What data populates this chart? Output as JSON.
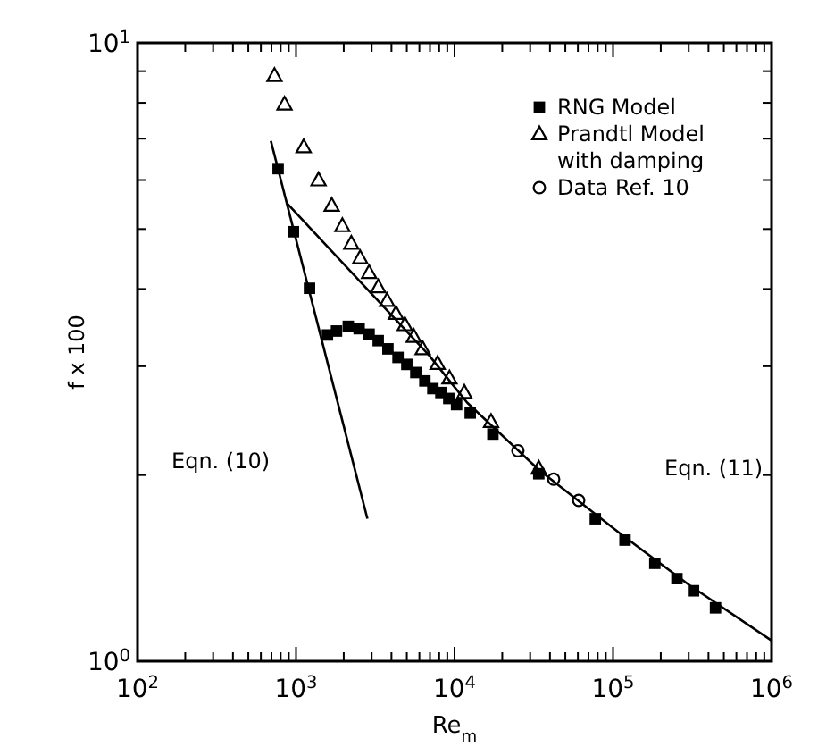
{
  "chart_data": {
    "type": "scatter",
    "xlabel": "Re$_{m}$",
    "ylabel": "f x 100",
    "log": "xy",
    "legend": "top right",
    "grid": false,
    "xlim": [
      100,
      1000000
    ],
    "ylim": [
      1,
      10
    ],
    "xticks": [
      {
        "value": 100,
        "label": "10$^{2}$"
      },
      {
        "value": 200,
        "label": null
      },
      {
        "value": 300,
        "label": null
      },
      {
        "value": 400,
        "label": null
      },
      {
        "value": 500,
        "label": null
      },
      {
        "value": 600,
        "label": null
      },
      {
        "value": 700,
        "label": null
      },
      {
        "value": 800,
        "label": null
      },
      {
        "value": 900,
        "label": null
      },
      {
        "value": 1000,
        "label": "10$^{3}$"
      },
      {
        "value": 2000,
        "label": null
      },
      {
        "value": 3000,
        "label": null
      },
      {
        "value": 4000,
        "label": null
      },
      {
        "value": 5000,
        "label": null
      },
      {
        "value": 6000,
        "label": null
      },
      {
        "value": 7000,
        "label": null
      },
      {
        "value": 8000,
        "label": null
      },
      {
        "value": 9000,
        "label": null
      },
      {
        "value": 10000,
        "label": "10$^{4}$"
      },
      {
        "value": 20000,
        "label": null
      },
      {
        "value": 30000,
        "label": null
      },
      {
        "value": 40000,
        "label": null
      },
      {
        "value": 50000,
        "label": null
      },
      {
        "value": 60000,
        "label": null
      },
      {
        "value": 70000,
        "label": null
      },
      {
        "value": 80000,
        "label": null
      },
      {
        "value": 90000,
        "label": null
      },
      {
        "value": 100000,
        "label": "10$^{5}$"
      },
      {
        "value": 200000,
        "label": null
      },
      {
        "value": 300000,
        "label": null
      },
      {
        "value": 400000,
        "label": null
      },
      {
        "value": 500000,
        "label": null
      },
      {
        "value": 600000,
        "label": null
      },
      {
        "value": 700000,
        "label": null
      },
      {
        "value": 800000,
        "label": null
      },
      {
        "value": 900000,
        "label": null
      },
      {
        "value": 1000000,
        "label": "10$^{6}$"
      }
    ],
    "yticks": [
      {
        "value": 1,
        "label": "10$^{0}$"
      },
      {
        "value": 2,
        "label": null
      },
      {
        "value": 3,
        "label": null
      },
      {
        "value": 4,
        "label": null
      },
      {
        "value": 5,
        "label": null
      },
      {
        "value": 6,
        "label": null
      },
      {
        "value": 7,
        "label": null
      },
      {
        "value": 8,
        "label": null
      },
      {
        "value": 9,
        "label": null
      },
      {
        "value": 10,
        "label": "10$^{1}$"
      }
    ],
    "annotations": [
      "Eqn. (10)",
      "Eqn. (11)"
    ],
    "series": [
      {
        "name": "RNG Model",
        "marker": "square",
        "color": "#000000",
        "x": [
          771,
          963,
          1216,
          1578,
          1800,
          2136,
          2500,
          2890,
          3300,
          3800,
          4400,
          5000,
          5700,
          6500,
          7300,
          8200,
          9200,
          10300,
          12560,
          17460,
          34000,
          77300,
          119000,
          183500,
          253000,
          322000,
          443000
        ],
        "values": [
          6.26,
          4.95,
          4.01,
          3.37,
          3.42,
          3.48,
          3.45,
          3.38,
          3.3,
          3.2,
          3.1,
          3.02,
          2.93,
          2.84,
          2.76,
          2.72,
          2.66,
          2.6,
          2.52,
          2.33,
          2.01,
          1.7,
          1.57,
          1.44,
          1.36,
          1.3,
          1.22
        ]
      },
      {
        "name": "Prandtl Model\nwith damping",
        "marker": "triangle",
        "color": "#000000",
        "x": [
          731,
          846,
          1117,
          1387,
          1679,
          1960,
          2232,
          2540,
          2890,
          3300,
          3750,
          4270,
          4860,
          5530,
          6300,
          7820,
          9290,
          11530,
          17000,
          34000
        ],
        "values": [
          8.85,
          7.96,
          6.79,
          6.0,
          5.46,
          5.06,
          4.74,
          4.49,
          4.25,
          4.03,
          3.83,
          3.65,
          3.5,
          3.35,
          3.2,
          3.03,
          2.87,
          2.72,
          2.44,
          2.05
        ]
      },
      {
        "name": "Data Ref. 10",
        "marker": "circle",
        "color": "#000000",
        "x": [
          25100,
          42200,
          60700
        ],
        "values": [
          2.19,
          1.97,
          1.82
        ]
      },
      {
        "type": "line",
        "marker": "none",
        "color": "#000000",
        "x": [
          694,
          2820
        ],
        "values": [
          6.94,
          1.7
        ]
      },
      {
        "type": "line",
        "marker": "none",
        "color": "#000000",
        "x": [
          884,
          2432,
          6870,
          12000,
          34000,
          114000,
          300000,
          1000000
        ],
        "values": [
          5.49,
          4.16,
          3.13,
          2.62,
          2.04,
          1.6,
          1.33,
          1.08
        ]
      }
    ]
  }
}
